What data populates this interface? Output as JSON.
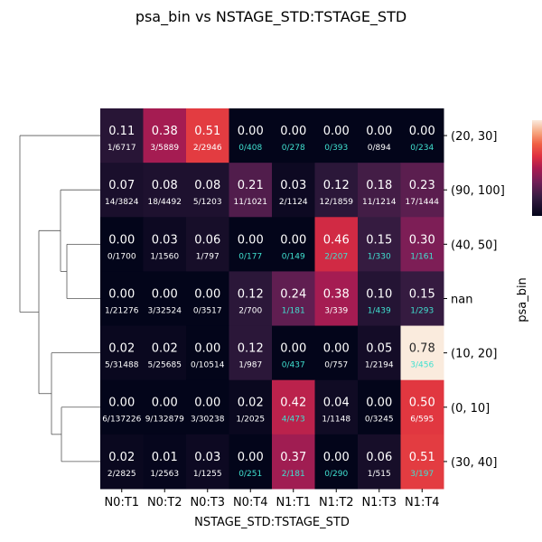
{
  "chart_data": {
    "type": "heatmap",
    "title": "psa_bin vs NSTAGE_STD:TSTAGE_STD",
    "xlabel": "NSTAGE_STD:TSTAGE_STD",
    "ylabel": "psa_bin",
    "x_categories": [
      "N0:T1",
      "N0:T2",
      "N0:T3",
      "N0:T4",
      "N1:T1",
      "N1:T2",
      "N1:T3",
      "N1:T4"
    ],
    "y_categories": [
      "(20, 30]",
      "(90, 100]",
      "(40, 50]",
      "nan",
      "(10, 20]",
      "(0, 10]",
      "(30, 40]"
    ],
    "values": [
      [
        0.11,
        0.38,
        0.51,
        0.0,
        0.0,
        0.0,
        0.0,
        0.0
      ],
      [
        0.07,
        0.08,
        0.08,
        0.21,
        0.03,
        0.12,
        0.18,
        0.23
      ],
      [
        0.0,
        0.03,
        0.06,
        0.0,
        0.0,
        0.46,
        0.15,
        0.3
      ],
      [
        0.0,
        0.0,
        0.0,
        0.12,
        0.24,
        0.38,
        0.1,
        0.15
      ],
      [
        0.02,
        0.02,
        0.0,
        0.12,
        0.0,
        0.0,
        0.05,
        0.78
      ],
      [
        0.0,
        0.0,
        0.0,
        0.02,
        0.42,
        0.04,
        0.0,
        0.5
      ],
      [
        0.02,
        0.01,
        0.03,
        0.0,
        0.37,
        0.0,
        0.06,
        0.51
      ]
    ],
    "value_labels": [
      [
        "0.11",
        "0.38",
        "0.51",
        "0.00",
        "0.00",
        "0.00",
        "0.00",
        "0.00"
      ],
      [
        "0.07",
        "0.08",
        "0.08",
        "0.21",
        "0.03",
        "0.12",
        "0.18",
        "0.23"
      ],
      [
        "0.00",
        "0.03",
        "0.06",
        "0.00",
        "0.00",
        "0.46",
        "0.15",
        "0.30"
      ],
      [
        "0.00",
        "0.00",
        "0.00",
        "0.12",
        "0.24",
        "0.38",
        "0.10",
        "0.15"
      ],
      [
        "0.02",
        "0.02",
        "0.00",
        "0.12",
        "0.00",
        "0.00",
        "0.05",
        "0.78"
      ],
      [
        "0.00",
        "0.00",
        "0.00",
        "0.02",
        "0.42",
        "0.04",
        "0.00",
        "0.50"
      ],
      [
        "0.02",
        "0.01",
        "0.03",
        "0.00",
        "0.37",
        "0.00",
        "0.06",
        "0.51"
      ]
    ],
    "count_labels": [
      [
        "1/6717",
        "3/5889",
        "2/2946",
        "0/408",
        "0/278",
        "0/393",
        "0/894",
        "0/234"
      ],
      [
        "14/3824",
        "18/4492",
        "5/1203",
        "11/1021",
        "2/1124",
        "12/1859",
        "11/1214",
        "17/1444"
      ],
      [
        "0/1700",
        "1/1560",
        "1/797",
        "0/177",
        "0/149",
        "2/207",
        "1/330",
        "1/161"
      ],
      [
        "1/21276",
        "3/32524",
        "0/3517",
        "2/700",
        "1/181",
        "3/339",
        "1/439",
        "1/293"
      ],
      [
        "5/31488",
        "5/25685",
        "0/10514",
        "1/987",
        "0/437",
        "0/757",
        "1/2194",
        "3/456"
      ],
      [
        "6/137226",
        "9/132879",
        "3/30238",
        "1/2025",
        "4/473",
        "1/1148",
        "0/3245",
        "6/595"
      ],
      [
        "2/2825",
        "1/2563",
        "1/1255",
        "0/251",
        "2/181",
        "0/290",
        "1/515",
        "3/197"
      ]
    ],
    "count_label_highlighted": [
      [
        false,
        false,
        false,
        true,
        true,
        true,
        false,
        true
      ],
      [
        false,
        false,
        false,
        false,
        false,
        false,
        false,
        false
      ],
      [
        false,
        false,
        false,
        true,
        true,
        true,
        true,
        true
      ],
      [
        false,
        false,
        false,
        false,
        true,
        false,
        true,
        true
      ],
      [
        false,
        false,
        false,
        false,
        true,
        false,
        false,
        true
      ],
      [
        false,
        false,
        false,
        false,
        true,
        false,
        false,
        false
      ],
      [
        false,
        false,
        false,
        true,
        true,
        true,
        false,
        true
      ]
    ],
    "count_highlight_color": "#40e0d0",
    "colormap": "rocket",
    "color_range": [
      0.0,
      0.78
    ],
    "colorbar_ticks": [],
    "dendrogram": "rows, left side",
    "grid": false
  }
}
